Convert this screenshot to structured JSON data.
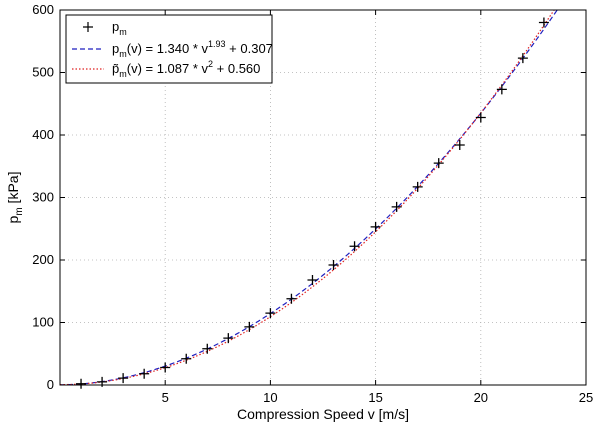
{
  "chart_data": {
    "type": "scatter",
    "xlabel": "Compression Speed v [m/s]",
    "ylabel": "p_m [kPa]",
    "xlim": [
      0,
      25
    ],
    "ylim": [
      0,
      600
    ],
    "xticks": [
      5,
      10,
      15,
      20,
      25
    ],
    "yticks": [
      0,
      100,
      200,
      300,
      400,
      500,
      600
    ],
    "grid": true,
    "legend_position": "top-left",
    "series": [
      {
        "name": "p_m",
        "kind": "markers",
        "marker": "+",
        "color": "#000000",
        "x": [
          1,
          2,
          3,
          4,
          5,
          6,
          7,
          8,
          9,
          10,
          11,
          12,
          13,
          14,
          15,
          16,
          17,
          18,
          19,
          20,
          21,
          22,
          23
        ],
        "y": [
          2,
          5,
          11,
          18,
          28,
          42,
          58,
          75,
          93,
          115,
          138,
          168,
          192,
          222,
          253,
          285,
          317,
          355,
          384,
          428,
          473,
          523,
          580
        ]
      },
      {
        "name": "p_m(v) = 1.340 * v^1.93 + 0.307",
        "kind": "curve",
        "coef": 1.34,
        "exponent": 1.93,
        "offset": 0.307,
        "style": "dashed",
        "color": "#1f1fbf"
      },
      {
        "name": "p~_m(v) = 1.087 * v^2 + 0.560",
        "kind": "curve",
        "coef": 1.087,
        "exponent": 2,
        "offset": 0.56,
        "style": "dotted",
        "color": "#e02020"
      }
    ],
    "legend": {
      "entry1": {
        "main": "p",
        "sub": "m"
      },
      "entry2": {
        "p": "p",
        "sub": "m",
        "mid": "(v) = 1.340 * v",
        "sup": "1.93",
        "tail": " + 0.307"
      },
      "entry3": {
        "p": "p̃",
        "sub": "m",
        "mid": "(v) = 1.087 * v",
        "sup": "2",
        "tail": " + 0.560"
      }
    }
  }
}
